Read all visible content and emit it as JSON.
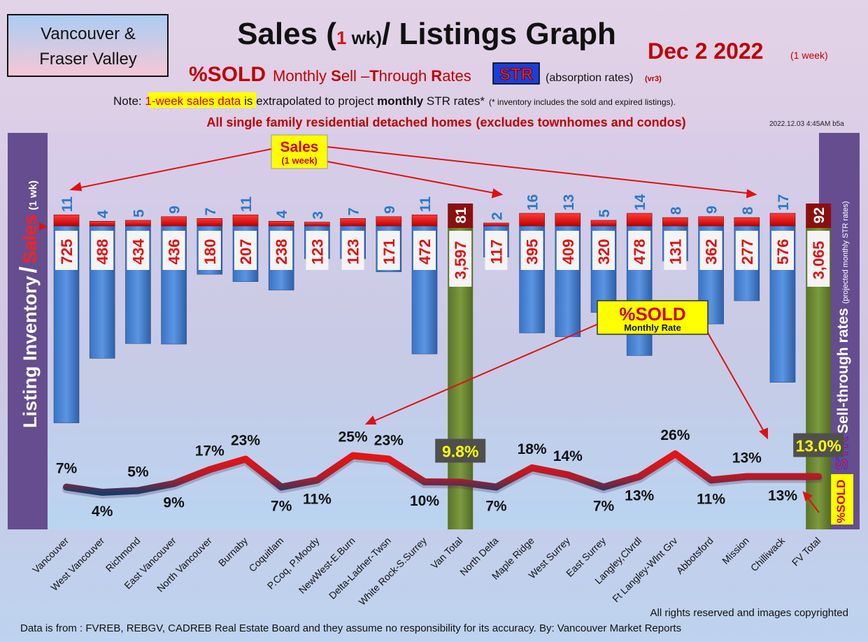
{
  "header": {
    "region_line1": "Vancouver &",
    "region_line2": "Fraser Valley",
    "title_a": "Sales (",
    "title_b": "1",
    "title_c": " wk)",
    "title_d": "/ Listings Graph",
    "date": "Dec 2  2022",
    "date_note": "(1 week)",
    "sub_pct": "%SOLD",
    "sub_m1": "Monthly ",
    "sub_S": "S",
    "sub_m2": "ell –",
    "sub_T": "T",
    "sub_m3": "hrough ",
    "sub_R": "R",
    "sub_m4": "ates",
    "str_badge": "STR",
    "absorption": "(absorption rates)",
    "version": "(vr3)",
    "note_a": "Note: ",
    "note_hl": "1-week sales data",
    "note_b": " is extrapolated to project ",
    "note_bold": "monthly",
    "note_c": " STR rates*",
    "note_small": "(* inventory includes the sold and expired listings).",
    "homes_a": "All single family residential detached homes",
    "homes_b": "(excludes townhomes and condos)",
    "stamp": "2022.12.03 4:45AM b5a"
  },
  "left_axis": {
    "a": "Listing Inventory",
    "slash": "/",
    "b": "Sales",
    "c": "(1 wk)"
  },
  "right_axis": {
    "str": "STR",
    "a": "Sell-through rates",
    "b": "(projected monthly STR rates)"
  },
  "right_badge": "%SOLD",
  "callouts": {
    "sales_title": "Sales",
    "sales_sub": "(1 week)",
    "sold_title": "%SOLD",
    "sold_sub": "Monthly Rate"
  },
  "footer": {
    "rights": "All rights reserved and  images copyrighted",
    "source": "Data is from : FVREB, REBGV, CADREB Real Estate Board and they assume no responsibility for its accuracy. By: Vancouver Market Reports"
  },
  "chart_data": {
    "type": "bar",
    "categories": [
      "Vancouver",
      "West Vancouver",
      "Richmond",
      "East Vancouver",
      "North Vancouver",
      "Burnaby",
      "Coquitlam",
      "P.Coq, P.Moody",
      "NewWest-E.Burn",
      "Delta-Ladner-Twsn",
      "White Rock-S.Surrey",
      "Van Total",
      "North Delta",
      "Maple Ridge",
      "West Surrey",
      "East Surrey",
      "Langley,Clvrdl",
      "Ft Langley-Wlnt Grv",
      "Abbotsford",
      "Mission",
      "Chilliwack",
      "FV Total"
    ],
    "totals": [
      false,
      false,
      false,
      false,
      false,
      false,
      false,
      false,
      false,
      false,
      false,
      true,
      false,
      false,
      false,
      false,
      false,
      false,
      false,
      false,
      false,
      true
    ],
    "listings": [
      725,
      488,
      434,
      436,
      180,
      207,
      238,
      123,
      123,
      171,
      472,
      3597,
      117,
      395,
      409,
      320,
      478,
      131,
      362,
      277,
      576,
      3065
    ],
    "listing_labels": [
      "725",
      "488",
      "434",
      "436",
      "180",
      "207",
      "238",
      "123",
      "123",
      "171",
      "472",
      "3,597",
      "117",
      "395",
      "409",
      "320",
      "478",
      "131",
      "362",
      "277",
      "576",
      "3,065"
    ],
    "sales": [
      11,
      4,
      5,
      9,
      7,
      11,
      4,
      3,
      7,
      9,
      11,
      81,
      2,
      16,
      13,
      5,
      14,
      8,
      9,
      8,
      17,
      92
    ],
    "str_pct": [
      7,
      4,
      5,
      9,
      17,
      23,
      7,
      11,
      25,
      23,
      10,
      9.8,
      7,
      18,
      14,
      7,
      13,
      26,
      11,
      13,
      13,
      13.0
    ],
    "str_labels": [
      "7%",
      "4%",
      "5%",
      "9%",
      "17%",
      "23%",
      "7%",
      "11%",
      "25%",
      "23%",
      "10%",
      "9.8%",
      "7%",
      "18%",
      "14%",
      "7%",
      "13%",
      "26%",
      "11%",
      "13%",
      "13%",
      "13.0%"
    ],
    "colors": {
      "listing_bar": "#4a86d8",
      "total_bar": "#6d8a34",
      "sales_bar": "#e81010",
      "line_low": "#1b3a66",
      "line_high": "#e01616",
      "sales_label": "#2b78c8",
      "listing_label": "#e01010"
    }
  }
}
